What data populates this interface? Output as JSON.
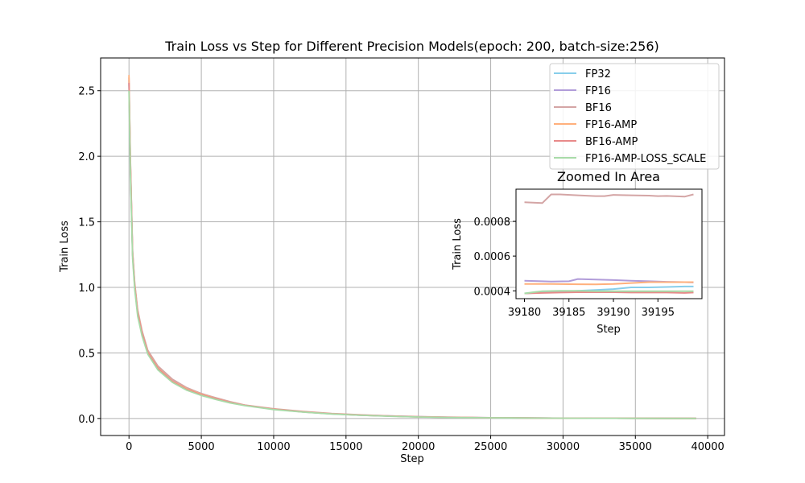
{
  "chart_data": [
    {
      "type": "line",
      "title": "Train Loss vs Step for Different Precision Models(epoch: 200, batch-size:256)",
      "xlabel": "Step",
      "ylabel": "Train Loss",
      "xlim": [
        -1960,
        41160
      ],
      "ylim": [
        -0.13,
        2.75
      ],
      "xticks": [
        0,
        5000,
        10000,
        15000,
        20000,
        25000,
        30000,
        35000,
        40000
      ],
      "yticks": [
        0.0,
        0.5,
        1.0,
        1.5,
        2.0,
        2.5
      ],
      "xtick_labels": [
        "0",
        "5000",
        "10000",
        "15000",
        "20000",
        "25000",
        "30000",
        "35000",
        "40000"
      ],
      "ytick_labels": [
        "0.0",
        "0.5",
        "1.0",
        "1.5",
        "2.0",
        "2.5"
      ],
      "grid": true,
      "legend_position": "top-right",
      "series": [
        {
          "name": "FP32",
          "color": "#87ceeb",
          "x": [
            0,
            100,
            250,
            400,
            600,
            900,
            1300,
            2000,
            3000,
            4000,
            5000,
            6000,
            7000,
            8000,
            10000,
            12000,
            14000,
            16000,
            18000,
            20000,
            22000,
            25000,
            28000,
            32000,
            36000,
            39200
          ],
          "y": [
            2.55,
            1.9,
            1.25,
            1.0,
            0.8,
            0.65,
            0.5,
            0.38,
            0.28,
            0.22,
            0.18,
            0.15,
            0.12,
            0.1,
            0.07,
            0.05,
            0.035,
            0.025,
            0.018,
            0.012,
            0.008,
            0.005,
            0.003,
            0.0015,
            0.0007,
            0.0004
          ]
        },
        {
          "name": "FP16",
          "color": "#b19cd9",
          "x": [
            0,
            100,
            250,
            400,
            600,
            900,
            1300,
            2000,
            3000,
            4000,
            5000,
            6000,
            7000,
            8000,
            10000,
            12000,
            14000,
            16000,
            18000,
            20000,
            22000,
            25000,
            28000,
            32000,
            36000,
            39200
          ],
          "y": [
            2.58,
            1.95,
            1.27,
            1.02,
            0.82,
            0.66,
            0.51,
            0.39,
            0.29,
            0.23,
            0.19,
            0.155,
            0.125,
            0.1,
            0.072,
            0.052,
            0.036,
            0.026,
            0.019,
            0.013,
            0.009,
            0.0055,
            0.0032,
            0.0016,
            0.0008,
            0.00046
          ]
        },
        {
          "name": "BF16",
          "color": "#d4a5a5",
          "x": [
            0,
            100,
            250,
            400,
            600,
            900,
            1300,
            2000,
            3000,
            4000,
            5000,
            6000,
            7000,
            8000,
            10000,
            12000,
            14000,
            16000,
            18000,
            20000,
            22000,
            25000,
            28000,
            32000,
            36000,
            39200
          ],
          "y": [
            2.6,
            1.98,
            1.28,
            1.03,
            0.83,
            0.67,
            0.52,
            0.4,
            0.3,
            0.235,
            0.19,
            0.158,
            0.128,
            0.103,
            0.074,
            0.054,
            0.038,
            0.028,
            0.02,
            0.014,
            0.01,
            0.006,
            0.0035,
            0.002,
            0.0011,
            0.00094
          ]
        },
        {
          "name": "FP16-AMP",
          "color": "#ffb07c",
          "x": [
            0,
            100,
            250,
            400,
            600,
            900,
            1300,
            2000,
            3000,
            4000,
            5000,
            6000,
            7000,
            8000,
            10000,
            12000,
            14000,
            16000,
            18000,
            20000,
            22000,
            25000,
            28000,
            32000,
            36000,
            39200
          ],
          "y": [
            2.62,
            1.96,
            1.26,
            1.01,
            0.81,
            0.655,
            0.505,
            0.385,
            0.285,
            0.225,
            0.185,
            0.152,
            0.122,
            0.1,
            0.071,
            0.051,
            0.036,
            0.026,
            0.018,
            0.012,
            0.0085,
            0.0052,
            0.003,
            0.0015,
            0.0007,
            0.00044
          ]
        },
        {
          "name": "BF16-AMP",
          "color": "#e88a8a",
          "x": [
            0,
            100,
            250,
            400,
            600,
            900,
            1300,
            2000,
            3000,
            4000,
            5000,
            6000,
            7000,
            8000,
            10000,
            12000,
            14000,
            16000,
            18000,
            20000,
            22000,
            25000,
            28000,
            32000,
            36000,
            39200
          ],
          "y": [
            2.56,
            1.93,
            1.25,
            1.0,
            0.8,
            0.65,
            0.5,
            0.38,
            0.28,
            0.22,
            0.18,
            0.15,
            0.12,
            0.1,
            0.07,
            0.05,
            0.035,
            0.025,
            0.018,
            0.012,
            0.008,
            0.005,
            0.003,
            0.0015,
            0.0007,
            0.00039
          ]
        },
        {
          "name": "FP16-AMP-LOSS_SCALE",
          "color": "#a8dba8",
          "x": [
            0,
            100,
            250,
            400,
            600,
            900,
            1300,
            2000,
            3000,
            4000,
            5000,
            6000,
            7000,
            8000,
            10000,
            12000,
            14000,
            16000,
            18000,
            20000,
            22000,
            25000,
            28000,
            32000,
            36000,
            39200
          ],
          "y": [
            2.5,
            1.88,
            1.22,
            0.98,
            0.78,
            0.63,
            0.49,
            0.37,
            0.275,
            0.215,
            0.175,
            0.145,
            0.118,
            0.098,
            0.068,
            0.049,
            0.034,
            0.024,
            0.017,
            0.0115,
            0.0078,
            0.0048,
            0.0029,
            0.0014,
            0.0007,
            0.0004
          ]
        }
      ]
    },
    {
      "type": "line",
      "title": "Zoomed In Area",
      "xlabel": "Step",
      "ylabel": "Train Loss",
      "xlim": [
        39179.05,
        39199.95
      ],
      "ylim": [
        0.000355,
        0.000985
      ],
      "xticks": [
        39180,
        39185,
        39190,
        39195
      ],
      "yticks": [
        0.0004,
        0.0006,
        0.0008
      ],
      "xtick_labels": [
        "39180",
        "39185",
        "39190",
        "39195"
      ],
      "ytick_labels": [
        "0.0004",
        "0.0006",
        "0.0008"
      ],
      "grid": false,
      "series": [
        {
          "name": "FP32",
          "color": "#87ceeb",
          "x": [
            39180,
            39182,
            39184,
            39186,
            39188,
            39190,
            39192,
            39194,
            39196,
            39198,
            39199
          ],
          "y": [
            0.000385,
            0.00039,
            0.000395,
            0.0004,
            0.000405,
            0.00041,
            0.00042,
            0.00042,
            0.000422,
            0.000425,
            0.000425
          ]
        },
        {
          "name": "FP16",
          "color": "#b19cd9",
          "x": [
            39180,
            39182,
            39183,
            39185,
            39186,
            39188,
            39190,
            39192,
            39194,
            39196,
            39198,
            39199
          ],
          "y": [
            0.000458,
            0.000455,
            0.000453,
            0.000455,
            0.000468,
            0.000465,
            0.000462,
            0.000458,
            0.000455,
            0.000452,
            0.00045,
            0.000448
          ]
        },
        {
          "name": "BF16",
          "color": "#d4a5a5",
          "x": [
            39180,
            39182,
            39183,
            39184,
            39186,
            39188,
            39189,
            39190,
            39192,
            39194,
            39195,
            39196,
            39198,
            39199
          ],
          "y": [
            0.00091,
            0.000905,
            0.000955,
            0.000955,
            0.00095,
            0.000945,
            0.000945,
            0.000952,
            0.00095,
            0.000948,
            0.000945,
            0.000946,
            0.000942,
            0.000955
          ]
        },
        {
          "name": "FP16-AMP",
          "color": "#ffb07c",
          "x": [
            39180,
            39183,
            39186,
            39188,
            39190,
            39192,
            39194,
            39196,
            39199
          ],
          "y": [
            0.00044,
            0.00044,
            0.000438,
            0.000437,
            0.00044,
            0.000445,
            0.00045,
            0.00045,
            0.00045
          ]
        },
        {
          "name": "BF16-AMP",
          "color": "#e88a8a",
          "x": [
            39180,
            39182,
            39184,
            39186,
            39188,
            39190,
            39192,
            39194,
            39196,
            39198,
            39199
          ],
          "y": [
            0.000385,
            0.000388,
            0.00039,
            0.000392,
            0.000392,
            0.000392,
            0.00039,
            0.00039,
            0.00039,
            0.000388,
            0.00039
          ]
        },
        {
          "name": "FP16-AMP-LOSS_SCALE",
          "color": "#a8dba8",
          "x": [
            39180,
            39181,
            39182,
            39184,
            39186,
            39188,
            39190,
            39192,
            39194,
            39196,
            39198,
            39199
          ],
          "y": [
            0.000385,
            0.000392,
            0.000398,
            0.0004,
            0.0004,
            0.000398,
            0.000398,
            0.000398,
            0.000398,
            0.000398,
            0.000398,
            0.000398
          ]
        }
      ]
    }
  ]
}
